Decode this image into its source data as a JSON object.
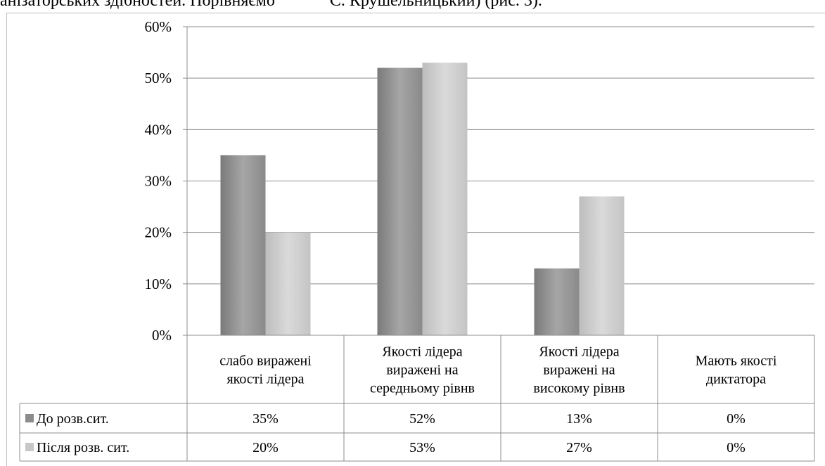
{
  "header_text": "анізаторських здібностей. Порівняємо             С. Крушельницький) (рис. 3).",
  "chart_data": {
    "type": "bar",
    "categories": [
      [
        "слабо виражені",
        "якості лідера"
      ],
      [
        "Якості лідера",
        "виражені на",
        "середньому рівнв"
      ],
      [
        "Якості лідера",
        "виражені на",
        "високому рівнв"
      ],
      [
        "Мають якості",
        "диктатора"
      ]
    ],
    "series": [
      {
        "name": "До розв.сит.",
        "values": [
          35,
          52,
          13,
          0
        ],
        "labels": [
          "35%",
          "52%",
          "13%",
          "0%"
        ],
        "color": "#8c8c8c"
      },
      {
        "name": "Після розв. сит.",
        "values": [
          20,
          53,
          27,
          0
        ],
        "labels": [
          "20%",
          "53%",
          "27%",
          "0%"
        ],
        "color": "#c8c8c8"
      }
    ],
    "yticks": [
      "0%",
      "10%",
      "20%",
      "30%",
      "40%",
      "50%",
      "60%"
    ],
    "ylim": [
      0,
      60
    ],
    "grid": true,
    "legend": "data-table-left"
  }
}
